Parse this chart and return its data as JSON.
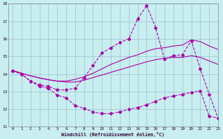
{
  "xlabel": "Windchill (Refroidissement éolien,°C)",
  "xlim": [
    -0.5,
    23
  ],
  "ylim": [
    11,
    18
  ],
  "xticks": [
    0,
    1,
    2,
    3,
    4,
    5,
    6,
    7,
    8,
    9,
    10,
    11,
    12,
    13,
    14,
    15,
    16,
    17,
    18,
    19,
    20,
    21,
    22,
    23
  ],
  "yticks": [
    11,
    12,
    13,
    14,
    15,
    16,
    17,
    18
  ],
  "background_color": "#c8eef0",
  "grid_color": "#9bbfcc",
  "line_color": "#aa00aa",
  "hours": [
    0,
    1,
    2,
    3,
    4,
    5,
    6,
    7,
    8,
    9,
    10,
    11,
    12,
    13,
    14,
    15,
    16,
    17,
    18,
    19,
    20,
    21,
    22,
    23
  ],
  "line_max": [
    14.2,
    14.0,
    13.6,
    13.4,
    13.3,
    13.1,
    13.1,
    13.2,
    13.8,
    14.5,
    15.2,
    15.5,
    15.8,
    16.0,
    17.15,
    17.9,
    16.65,
    14.85,
    15.05,
    15.1,
    15.9,
    14.3,
    12.85,
    11.5
  ],
  "line_mean_high": [
    14.2,
    14.05,
    13.9,
    13.78,
    13.68,
    13.6,
    13.6,
    13.7,
    13.85,
    14.05,
    14.3,
    14.55,
    14.75,
    14.95,
    15.1,
    15.3,
    15.45,
    15.5,
    15.6,
    15.65,
    15.95,
    15.85,
    15.6,
    15.4
  ],
  "line_mean_low": [
    14.2,
    14.05,
    13.9,
    13.78,
    13.68,
    13.6,
    13.55,
    13.55,
    13.65,
    13.8,
    13.95,
    14.1,
    14.25,
    14.4,
    14.55,
    14.7,
    14.82,
    14.9,
    14.95,
    14.95,
    15.05,
    14.95,
    14.75,
    14.55
  ],
  "line_min": [
    14.2,
    14.0,
    13.6,
    13.3,
    13.2,
    12.8,
    12.65,
    12.2,
    12.05,
    11.85,
    11.75,
    11.75,
    11.85,
    12.0,
    12.1,
    12.25,
    12.45,
    12.65,
    12.75,
    12.85,
    12.95,
    13.05,
    11.6,
    11.5
  ]
}
